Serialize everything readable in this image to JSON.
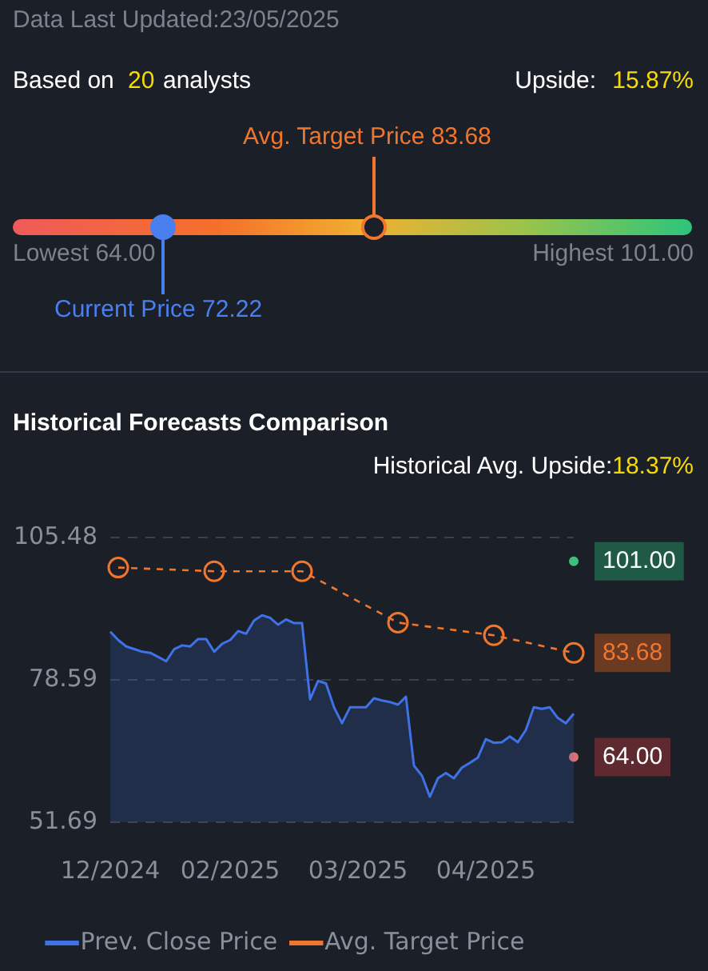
{
  "chart_data": [
    {
      "type": "other",
      "annotations": [
        "Data Last Updated:23/05/2025",
        "Based on",
        "20",
        "analysts",
        "Upside:",
        "15.87%",
        "Avg. Target Price 83.68",
        "Lowest 64.00",
        "Highest 101.00",
        "Current Price 72.22"
      ]
    },
    {
      "type": "line",
      "title": "Historical Forecasts Comparison",
      "subtitle": "Historical Avg. Upside:18.37%",
      "categories": [
        "12/2024",
        null,
        null,
        null,
        null,
        null,
        null,
        null,
        null,
        null,
        null,
        null,
        null,
        null,
        null,
        "02/2025",
        null,
        null,
        null,
        null,
        null,
        null,
        null,
        null,
        null,
        null,
        null,
        null,
        null,
        null,
        null,
        "03/2025",
        null,
        null,
        null,
        null,
        null,
        null,
        null,
        null,
        null,
        null,
        null,
        null,
        null,
        null,
        null,
        "04/2025",
        null,
        null,
        null,
        null,
        null,
        null,
        null,
        null,
        null,
        null,
        null
      ],
      "series": [
        {
          "name": "Prev. Close Price",
          "type": "area",
          "color": "#3f72e6",
          "marker": "none",
          "values": [
            87.7,
            86.1,
            84.9,
            84.4,
            83.9,
            83.7,
            82.9,
            82.1,
            84.4,
            85.1,
            84.9,
            86.3,
            86.3,
            83.9,
            85.4,
            86.1,
            87.8,
            87.3,
            89.8,
            90.8,
            90.3,
            89.0,
            90.0,
            89.3,
            89.3,
            74.9,
            78.4,
            77.9,
            73.4,
            70.4,
            73.4,
            73.4,
            73.4,
            75.1,
            74.7,
            74.4,
            73.9,
            75.4,
            62.4,
            60.5,
            56.5,
            60.0,
            61.0,
            60.0,
            62.0,
            62.9,
            63.9,
            67.4,
            66.7,
            66.8,
            67.9,
            66.8,
            69.1,
            73.4,
            73.1,
            73.4,
            71.4,
            70.4,
            72.2
          ]
        },
        {
          "name": "Avg. Target Price",
          "type": "line",
          "color": "#f0762e",
          "marker": "circle",
          "line_style": "dashed",
          "values": [
            null,
            99.8,
            null,
            null,
            null,
            null,
            null,
            null,
            null,
            null,
            null,
            null,
            null,
            99.1,
            null,
            null,
            null,
            null,
            null,
            null,
            null,
            null,
            null,
            null,
            99.1,
            null,
            null,
            null,
            null,
            null,
            null,
            null,
            null,
            null,
            null,
            null,
            89.4,
            null,
            null,
            null,
            null,
            null,
            null,
            null,
            null,
            null,
            null,
            null,
            87.0,
            null,
            null,
            null,
            null,
            null,
            null,
            null,
            null,
            null,
            83.68
          ],
          "value_labels": [
            null,
            null,
            null,
            null,
            null,
            null,
            null,
            null,
            null,
            null,
            null,
            null,
            null,
            null,
            null,
            null,
            null,
            null,
            null,
            null,
            null,
            null,
            null,
            null,
            null,
            null,
            null,
            null,
            null,
            null,
            null,
            null,
            null,
            null,
            null,
            null,
            null,
            null,
            null,
            null,
            null,
            null,
            null,
            null,
            null,
            null,
            null,
            null,
            null,
            null,
            null,
            null,
            null,
            null,
            null,
            null,
            null,
            null,
            "83.68"
          ]
        },
        {
          "type": "scatter",
          "color": "#3fbf7f",
          "values": [
            null,
            null,
            null,
            null,
            null,
            null,
            null,
            null,
            null,
            null,
            null,
            null,
            null,
            null,
            null,
            null,
            null,
            null,
            null,
            null,
            null,
            null,
            null,
            null,
            null,
            null,
            null,
            null,
            null,
            null,
            null,
            null,
            null,
            null,
            null,
            null,
            null,
            null,
            null,
            null,
            null,
            null,
            null,
            null,
            null,
            null,
            null,
            null,
            null,
            null,
            null,
            null,
            null,
            null,
            null,
            null,
            null,
            null,
            101.0
          ],
          "value_labels": [
            null,
            null,
            null,
            null,
            null,
            null,
            null,
            null,
            null,
            null,
            null,
            null,
            null,
            null,
            null,
            null,
            null,
            null,
            null,
            null,
            null,
            null,
            null,
            null,
            null,
            null,
            null,
            null,
            null,
            null,
            null,
            null,
            null,
            null,
            null,
            null,
            null,
            null,
            null,
            null,
            null,
            null,
            null,
            null,
            null,
            null,
            null,
            null,
            null,
            null,
            null,
            null,
            null,
            null,
            null,
            null,
            null,
            null,
            "101.00"
          ]
        },
        {
          "type": "scatter",
          "color": "#e07070",
          "values": [
            null,
            null,
            null,
            null,
            null,
            null,
            null,
            null,
            null,
            null,
            null,
            null,
            null,
            null,
            null,
            null,
            null,
            null,
            null,
            null,
            null,
            null,
            null,
            null,
            null,
            null,
            null,
            null,
            null,
            null,
            null,
            null,
            null,
            null,
            null,
            null,
            null,
            null,
            null,
            null,
            null,
            null,
            null,
            null,
            null,
            null,
            null,
            null,
            null,
            null,
            null,
            null,
            null,
            null,
            null,
            null,
            null,
            null,
            64.0
          ],
          "value_labels": [
            null,
            null,
            null,
            null,
            null,
            null,
            null,
            null,
            null,
            null,
            null,
            null,
            null,
            null,
            null,
            null,
            null,
            null,
            null,
            null,
            null,
            null,
            null,
            null,
            null,
            null,
            null,
            null,
            null,
            null,
            null,
            null,
            null,
            null,
            null,
            null,
            null,
            null,
            null,
            null,
            null,
            null,
            null,
            null,
            null,
            null,
            null,
            null,
            null,
            null,
            null,
            null,
            null,
            null,
            null,
            null,
            null,
            null,
            "64.00"
          ]
        }
      ],
      "ylim": [
        51.69,
        105.48
      ],
      "yticks": [
        51.69,
        78.59,
        105.48
      ],
      "grid": "y",
      "legend": "bottom"
    }
  ]
}
